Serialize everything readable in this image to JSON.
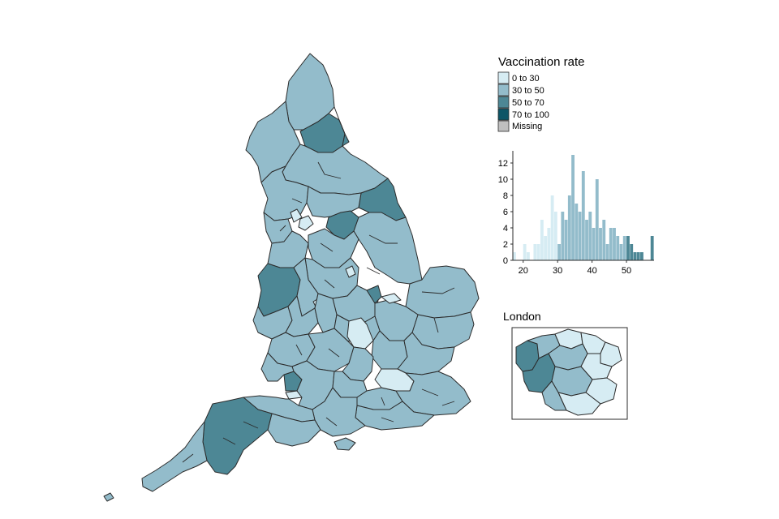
{
  "colors": {
    "0 to 30": "#d6ecf3",
    "30 to 50": "#93bccb",
    "50 to 70": "#4d8795",
    "70 to 100": "#0e5567",
    "Missing": "#bfbfbf",
    "border": "#2b2b2b"
  },
  "legend": {
    "title": "Vaccination rate",
    "items": [
      {
        "label": "0 to 30",
        "color_key": "0 to 30"
      },
      {
        "label": "30 to 50",
        "color_key": "30 to 50"
      },
      {
        "label": "50 to 70",
        "color_key": "50 to 70"
      },
      {
        "label": "70 to 100",
        "color_key": "70 to 100"
      },
      {
        "label": "Missing",
        "color_key": "Missing"
      }
    ]
  },
  "inset": {
    "title": "London"
  },
  "chart_data": {
    "type": "bar",
    "title": "",
    "xlabel": "",
    "ylabel": "",
    "xlim": [
      17,
      58
    ],
    "ylim": [
      0,
      13.5
    ],
    "bin_width": 1,
    "x_ticks": [
      "20",
      "30",
      "40",
      "50"
    ],
    "y_ticks": [
      "0",
      "2",
      "4",
      "6",
      "8",
      "10",
      "12"
    ],
    "bins": [
      {
        "x": 17,
        "count": 1
      },
      {
        "x": 18,
        "count": 0
      },
      {
        "x": 19,
        "count": 0
      },
      {
        "x": 20,
        "count": 2
      },
      {
        "x": 21,
        "count": 1
      },
      {
        "x": 22,
        "count": 0
      },
      {
        "x": 23,
        "count": 2
      },
      {
        "x": 24,
        "count": 2
      },
      {
        "x": 25,
        "count": 5
      },
      {
        "x": 26,
        "count": 3
      },
      {
        "x": 27,
        "count": 4
      },
      {
        "x": 28,
        "count": 8
      },
      {
        "x": 29,
        "count": 6
      },
      {
        "x": 30,
        "count": 2
      },
      {
        "x": 31,
        "count": 6
      },
      {
        "x": 32,
        "count": 5
      },
      {
        "x": 33,
        "count": 8
      },
      {
        "x": 34,
        "count": 13
      },
      {
        "x": 35,
        "count": 7
      },
      {
        "x": 36,
        "count": 6
      },
      {
        "x": 37,
        "count": 11
      },
      {
        "x": 38,
        "count": 5
      },
      {
        "x": 39,
        "count": 6
      },
      {
        "x": 40,
        "count": 4
      },
      {
        "x": 41,
        "count": 10
      },
      {
        "x": 42,
        "count": 4
      },
      {
        "x": 43,
        "count": 5
      },
      {
        "x": 44,
        "count": 2
      },
      {
        "x": 45,
        "count": 4
      },
      {
        "x": 46,
        "count": 4
      },
      {
        "x": 47,
        "count": 3
      },
      {
        "x": 48,
        "count": 2
      },
      {
        "x": 49,
        "count": 3
      },
      {
        "x": 50,
        "count": 3
      },
      {
        "x": 51,
        "count": 2
      },
      {
        "x": 52,
        "count": 1
      },
      {
        "x": 53,
        "count": 1
      },
      {
        "x": 54,
        "count": 1
      },
      {
        "x": 55,
        "count": 0
      },
      {
        "x": 56,
        "count": 0
      },
      {
        "x": 57,
        "count": 3
      }
    ],
    "class_breaks": [
      30,
      50,
      70
    ]
  }
}
